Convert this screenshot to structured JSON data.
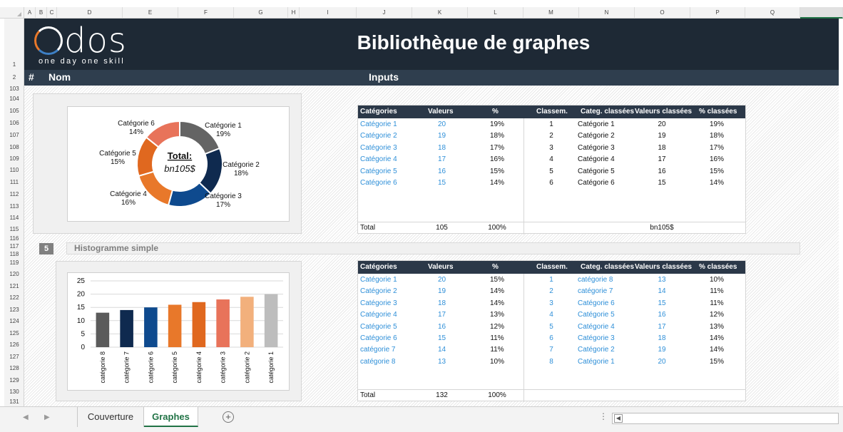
{
  "columns": [
    "A",
    "B",
    "C",
    "D",
    "E",
    "F",
    "G",
    "H",
    "I",
    "J",
    "K",
    "L",
    "M",
    "N",
    "O",
    "P",
    "Q"
  ],
  "rows": [
    "1",
    "2",
    "103",
    "104",
    "105",
    "106",
    "107",
    "108",
    "109",
    "110",
    "111",
    "112",
    "113",
    "114",
    "115",
    "116",
    "117",
    "118",
    "119",
    "120",
    "121",
    "122",
    "123",
    "124",
    "125",
    "126",
    "127",
    "128",
    "129",
    "130",
    "131"
  ],
  "banner": {
    "logo_text": "odos",
    "logo_tagline": "one day one skill",
    "title": "Bibliothèque de graphes"
  },
  "subbar": {
    "hash": "#",
    "name": "Nom",
    "inputs": "Inputs"
  },
  "donut": {
    "center_label": "Total:",
    "center_value": "bn105$",
    "slices": [
      {
        "label": "Catégorie 1",
        "pct": "19%",
        "value": 20,
        "color": "#646464"
      },
      {
        "label": "Catégorie 2",
        "pct": "18%",
        "value": 19,
        "color": "#0f2a4f"
      },
      {
        "label": "Catégorie 3",
        "pct": "17%",
        "value": 18,
        "color": "#0e4a8e"
      },
      {
        "label": "Catégorie 4",
        "pct": "16%",
        "value": 17,
        "color": "#e8782a"
      },
      {
        "label": "Catégorie 5",
        "pct": "15%",
        "value": 16,
        "color": "#e0681f"
      },
      {
        "label": "Catégorie 6",
        "pct": "14%",
        "value": 15,
        "color": "#e8735a"
      }
    ]
  },
  "table1": {
    "headers": [
      "Catégories",
      "Valeurs",
      "%",
      "Classem.",
      "Categ. classées",
      "Valeurs classées",
      "% classées"
    ],
    "rows": [
      [
        "Catégorie 1",
        "20",
        "19%",
        "1",
        "Catégorie 1",
        "20",
        "19%"
      ],
      [
        "Catégorie 2",
        "19",
        "18%",
        "2",
        "Catégorie 2",
        "19",
        "18%"
      ],
      [
        "Catégorie 3",
        "18",
        "17%",
        "3",
        "Catégorie 3",
        "18",
        "17%"
      ],
      [
        "Catégorie 4",
        "17",
        "16%",
        "4",
        "Catégorie 4",
        "17",
        "16%"
      ],
      [
        "Catégorie 5",
        "16",
        "15%",
        "5",
        "Catégorie 5",
        "16",
        "15%"
      ],
      [
        "Catégorie 6",
        "15",
        "14%",
        "6",
        "Catégorie 6",
        "15",
        "14%"
      ]
    ],
    "total_label": "Total",
    "total_value": "105",
    "total_pct": "100%",
    "total_formatted": "bn105$"
  },
  "section5": {
    "number": "5",
    "title": "Histogramme simple"
  },
  "chart_data": {
    "type": "bar",
    "categories": [
      "catégorie 8",
      "catégorie 7",
      "catégorie 6",
      "catégorie 5",
      "catégorie 4",
      "catégorie 3",
      "catégorie 2",
      "catégorie 1"
    ],
    "values": [
      13,
      14,
      15,
      16,
      17,
      18,
      19,
      20
    ],
    "colors": [
      "#5b5b5b",
      "#0f2a4f",
      "#0e4a8e",
      "#e8782a",
      "#e0681f",
      "#e8735a",
      "#f2b07c",
      "#bdbdbd"
    ],
    "yticks": [
      "0",
      "5",
      "10",
      "15",
      "20",
      "25"
    ],
    "ylim": [
      0,
      25
    ],
    "grid": true
  },
  "table2": {
    "headers": [
      "Catégories",
      "Valeurs",
      "%",
      "Classem.",
      "Categ. classées",
      "Valeurs classées",
      "% classées"
    ],
    "rows": [
      [
        "Catégorie 1",
        "20",
        "15%",
        "1",
        "catégorie 8",
        "13",
        "10%"
      ],
      [
        "Catégorie 2",
        "19",
        "14%",
        "2",
        "catégorie 7",
        "14",
        "11%"
      ],
      [
        "Catégorie 3",
        "18",
        "14%",
        "3",
        "Catégorie 6",
        "15",
        "11%"
      ],
      [
        "Catégorie 4",
        "17",
        "13%",
        "4",
        "Catégorie 5",
        "16",
        "12%"
      ],
      [
        "Catégorie 5",
        "16",
        "12%",
        "5",
        "Catégorie 4",
        "17",
        "13%"
      ],
      [
        "Catégorie 6",
        "15",
        "11%",
        "6",
        "Catégorie 3",
        "18",
        "14%"
      ],
      [
        "catégorie 7",
        "14",
        "11%",
        "7",
        "Catégorie 2",
        "19",
        "14%"
      ],
      [
        "catégorie 8",
        "13",
        "10%",
        "8",
        "Catégorie 1",
        "20",
        "15%"
      ]
    ],
    "total_label": "Total",
    "total_value": "132",
    "total_pct": "100%"
  },
  "tabs": {
    "prev_icon": "◀",
    "next_icon": "▶",
    "items": [
      {
        "label": "Couverture"
      },
      {
        "label": "Graphes"
      }
    ],
    "active": "Graphes",
    "add_icon": "+",
    "dots": "⋮",
    "scroll_left_icon": "◀"
  }
}
